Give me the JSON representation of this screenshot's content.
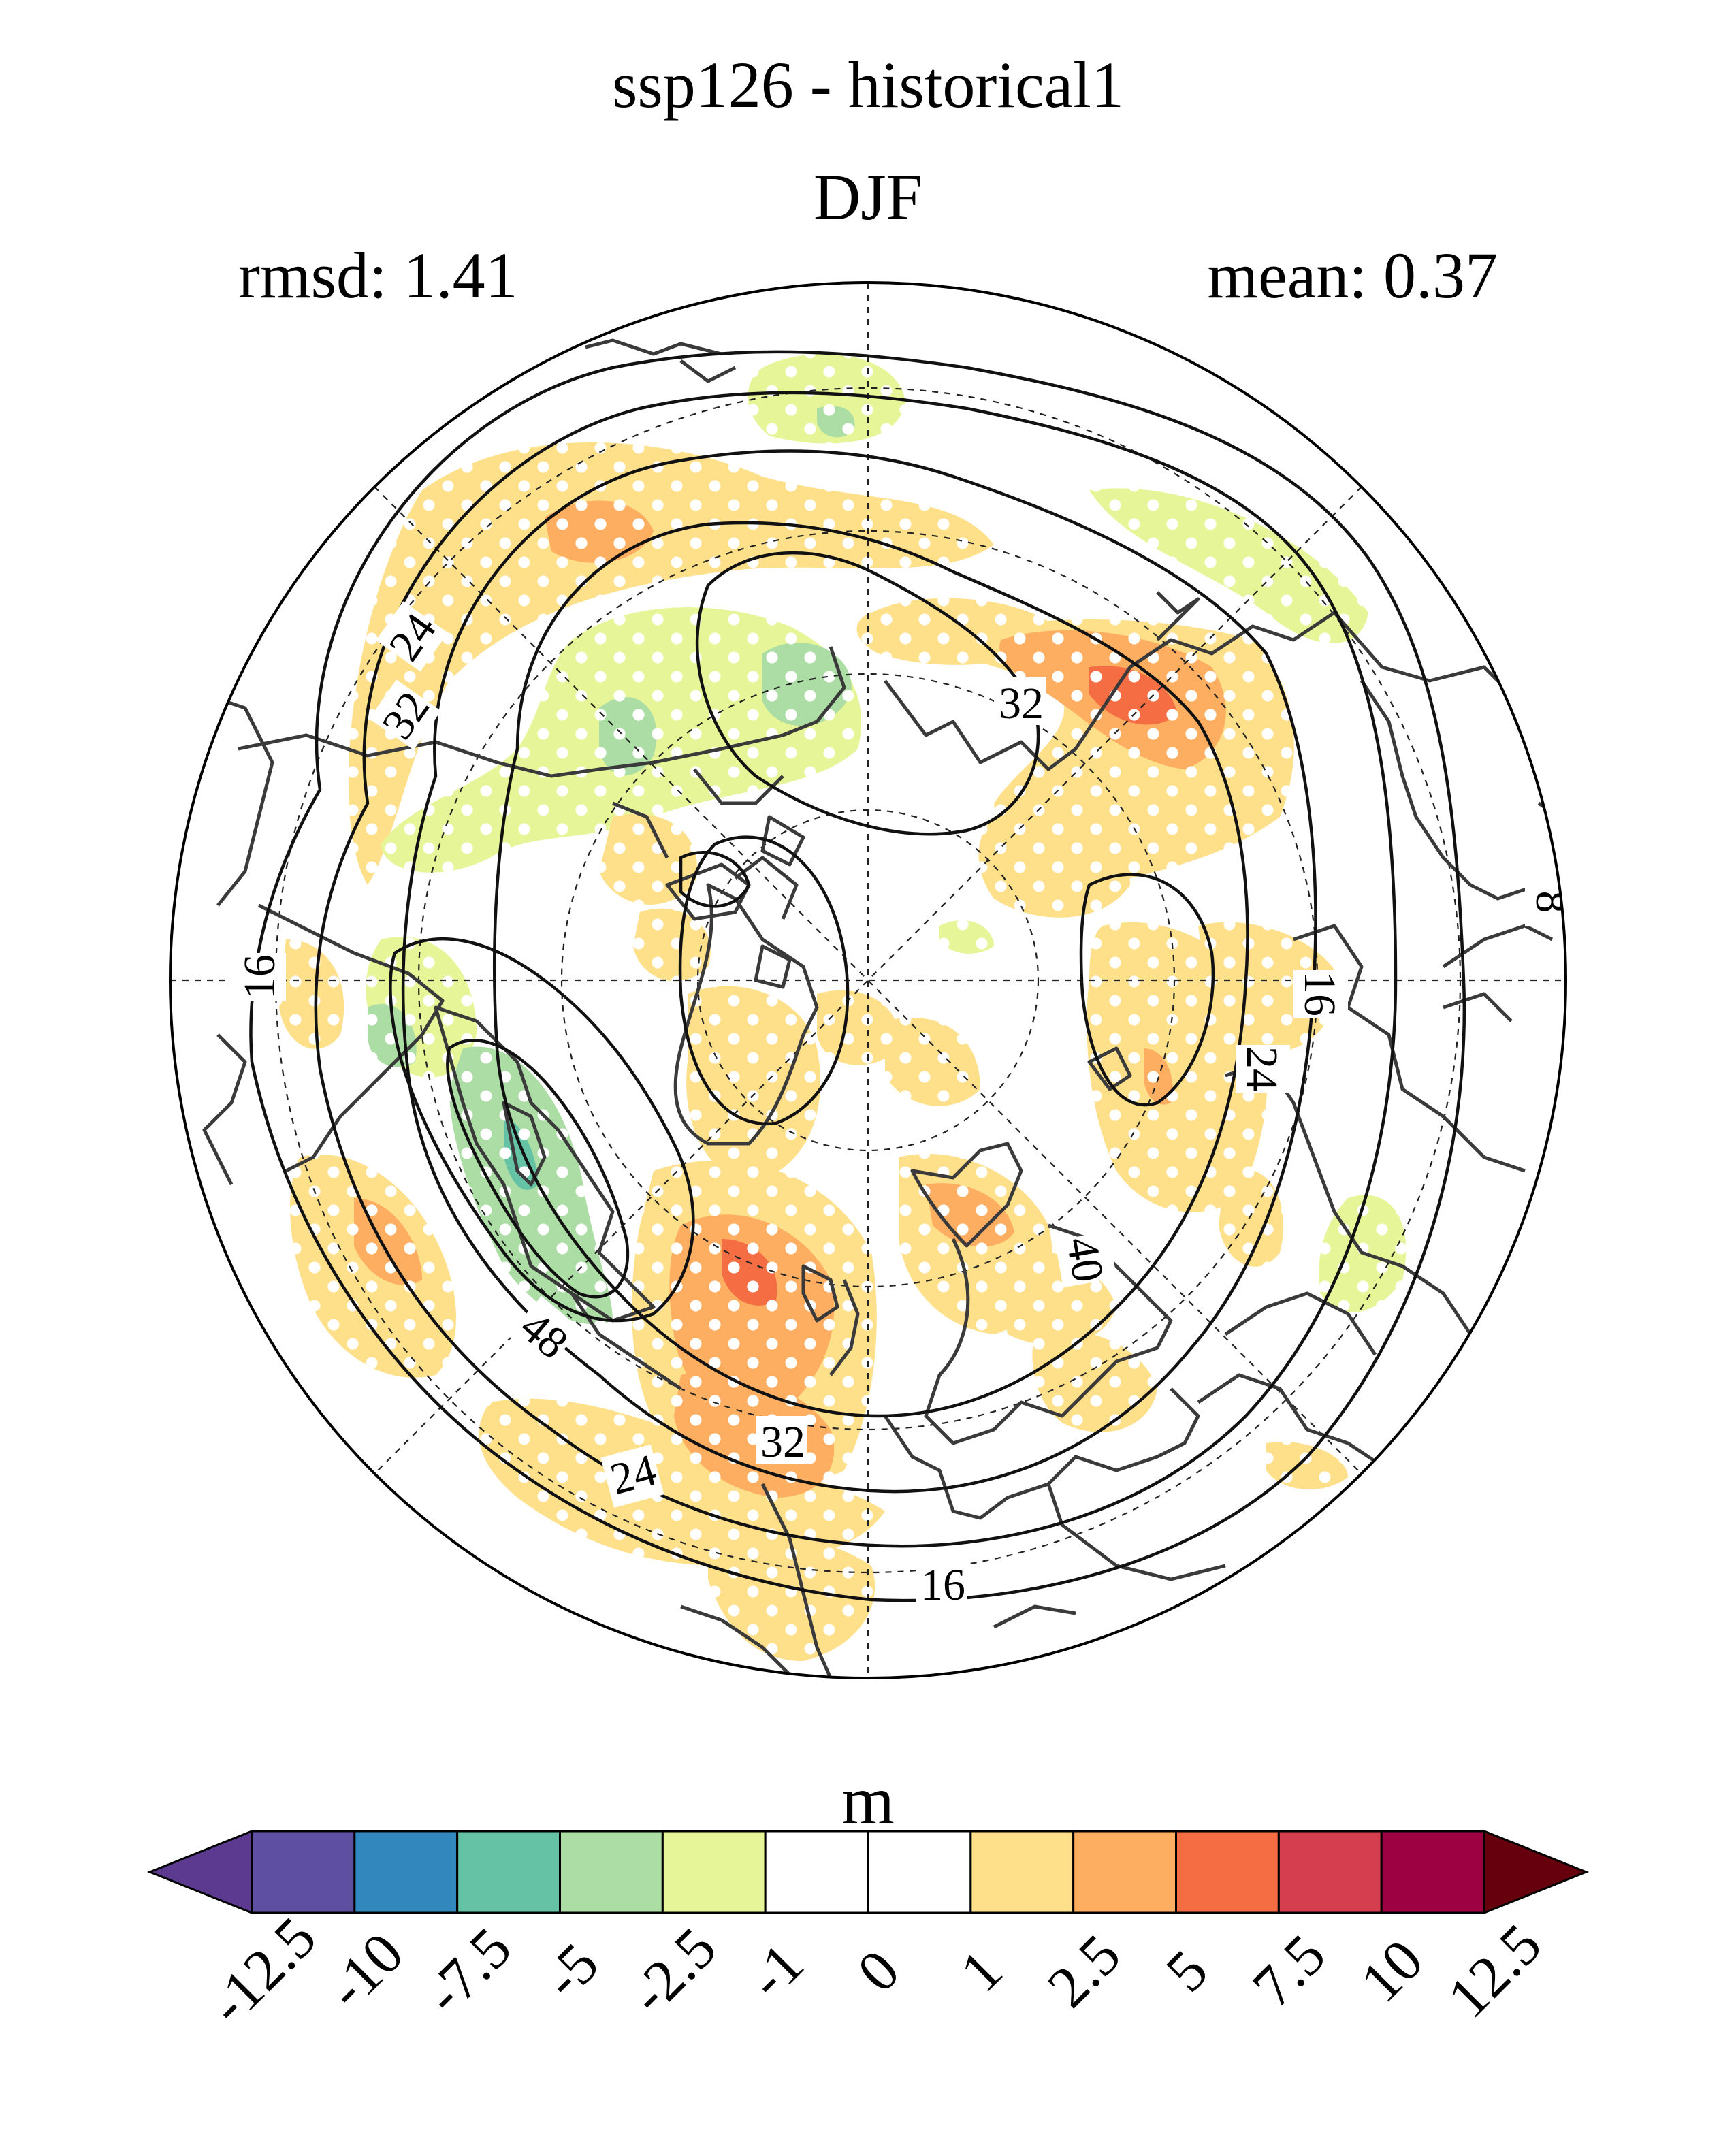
{
  "title_line1": "ssp126 - historical1",
  "title_line2": "DJF",
  "stats": {
    "rmsd": "rmsd: 1.41",
    "mean": "mean: 0.37"
  },
  "contour_labels": [
    "24",
    "32",
    "32",
    "8",
    "16",
    "16",
    "24",
    "40",
    "48",
    "32",
    "24",
    "16"
  ],
  "colorbar": {
    "unit": "m",
    "ticks": [
      "-12.5",
      "-10",
      "-7.5",
      "-5",
      "-2.5",
      "-1",
      "0",
      "1",
      "2.5",
      "5",
      "7.5",
      "10",
      "12.5"
    ],
    "colors": [
      "#5b3a8f",
      "#5e4fa2",
      "#3288bd",
      "#66c2a5",
      "#abdda4",
      "#e6f598",
      "#ffffff",
      "#ffffff",
      "#fee08b",
      "#fdae61",
      "#f46d43",
      "#d53e4f",
      "#9e0142",
      "#67000d"
    ]
  },
  "shading_colors": {
    "pos1": "#fee08b",
    "pos2": "#fdae61",
    "pos3": "#f46d43",
    "neg1": "#e6f598",
    "neg2": "#abdda4",
    "neg3": "#66c2a5"
  }
}
